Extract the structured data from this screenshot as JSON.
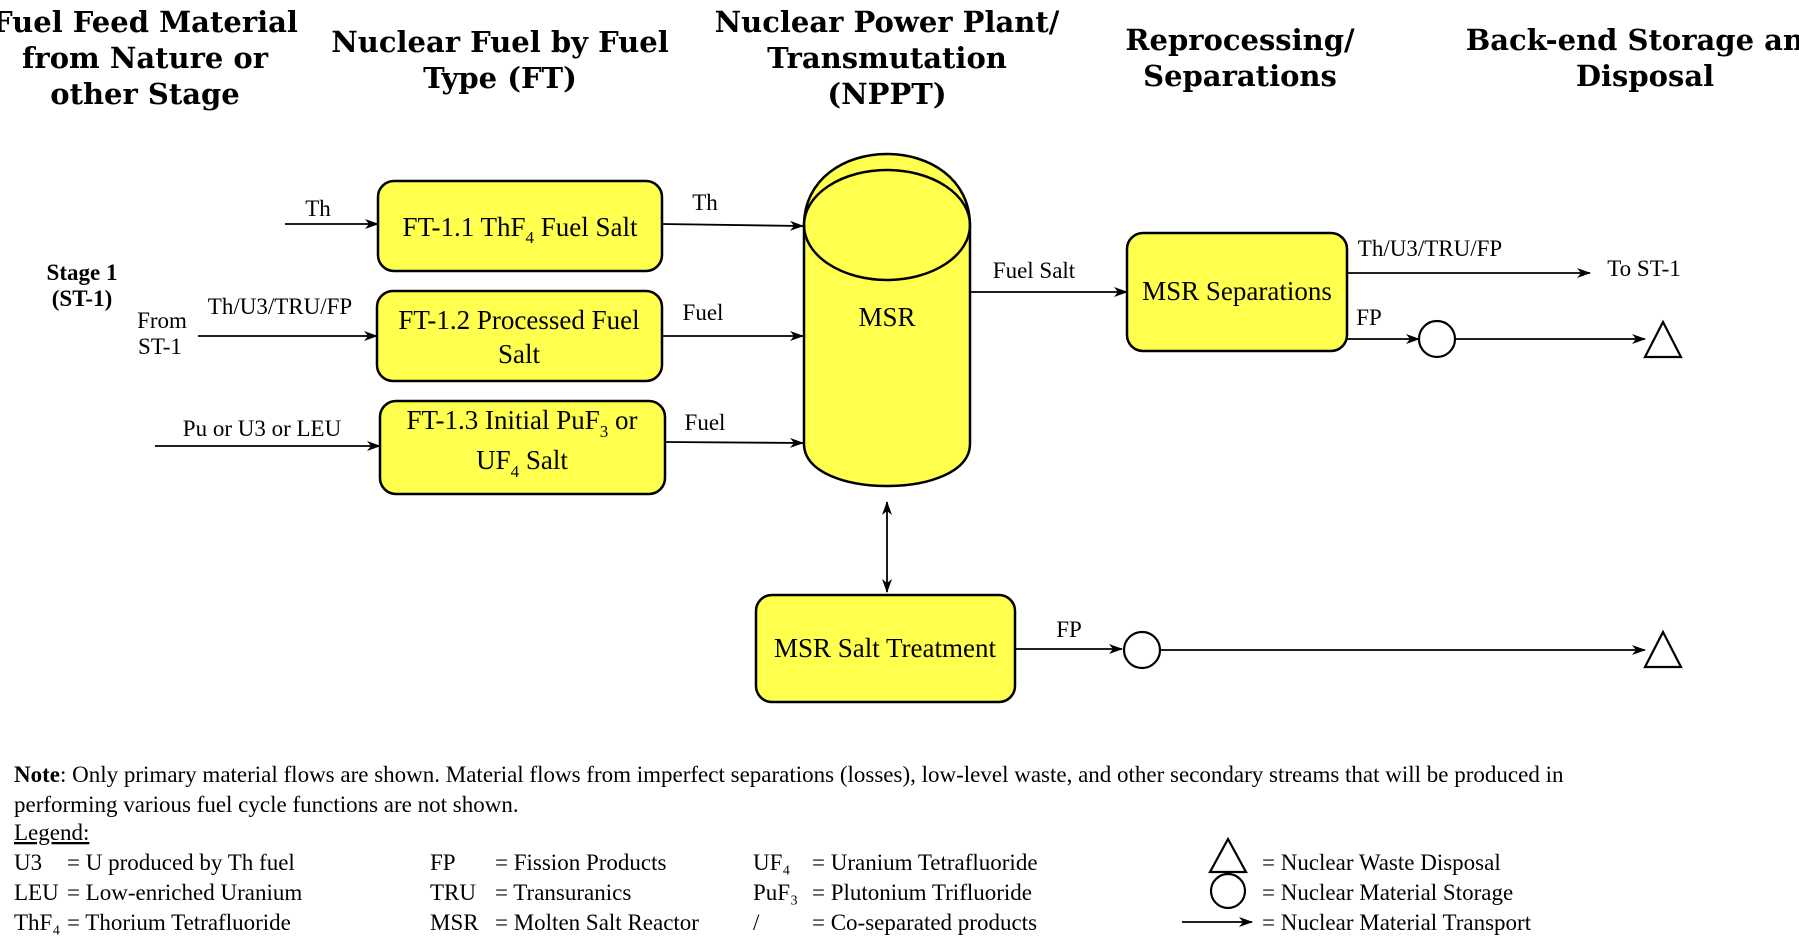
{
  "headers": {
    "feed": [
      "Fuel Feed Material",
      "from Nature or",
      "other Stage"
    ],
    "fuel": [
      "Nuclear Fuel by Fuel",
      "Type (FT)"
    ],
    "plant": [
      "Nuclear Power Plant/",
      "Transmutation",
      "(NPPT)"
    ],
    "reprocessing": [
      "Reprocessing/",
      "Separations"
    ],
    "backend": [
      "Back-end Storage and",
      "Disposal"
    ]
  },
  "stage": {
    "line1": "Stage 1",
    "line2": "(ST-1)"
  },
  "from_st1": {
    "line1": "From",
    "line2": "ST-1"
  },
  "boxes": {
    "ft11": {
      "prefix": "FT-1.1 ThF",
      "sub": "4",
      "suffix": " Fuel Salt"
    },
    "ft12": {
      "line1": "FT-1.2 Processed Fuel",
      "line2": "Salt"
    },
    "ft13": {
      "line1_prefix": "FT-1.3 Initial PuF",
      "line1_sub": "3",
      "line1_suffix": " or",
      "line2_prefix": "UF",
      "line2_sub": "4",
      "line2_suffix": " Salt"
    },
    "reactor": "MSR",
    "separations": "MSR Separations",
    "treatment": "MSR Salt Treatment"
  },
  "flows": {
    "in_th": "Th",
    "in_th_u3": "Th/U3/TRU/FP",
    "in_pu": "Pu or U3 or LEU",
    "out_th": "Th",
    "out_fuel_1": "Fuel",
    "out_fuel_2": "Fuel",
    "fuel_salt": "Fuel Salt",
    "sep_out_recycle": "Th/U3/TRU/FP",
    "to_st1": "To ST-1",
    "sep_out_fp": "FP",
    "treat_out_fp": "FP"
  },
  "note": {
    "label": "Note",
    "line1": ":  Only primary material flows are shown. Material flows from imperfect separations (losses), low-level waste, and other secondary streams that will be produced in",
    "line2": "performing various fuel cycle functions are not shown."
  },
  "legend": {
    "title": "Legend:",
    "col1": [
      {
        "abbr": "U3",
        "def": "= U produced by Th fuel"
      },
      {
        "abbr": "LEU",
        "def": "= Low-enriched Uranium"
      },
      {
        "abbr": "ThF₄",
        "def": "= Thorium Tetrafluoride"
      }
    ],
    "col2": [
      {
        "abbr": "FP",
        "def": "= Fission Products"
      },
      {
        "abbr": "TRU",
        "def": "= Transuranics"
      },
      {
        "abbr": "MSR",
        "def": "= Molten Salt Reactor"
      }
    ],
    "col3": [
      {
        "abbr": "UF₄",
        "def": "= Uranium Tetrafluoride"
      },
      {
        "abbr": "PuF₃",
        "def": "= Plutonium Trifluoride"
      },
      {
        "abbr": "/",
        "def": "= Co-separated products"
      }
    ],
    "symbols": [
      {
        "icon": "triangle-icon",
        "def": "= Nuclear Waste Disposal"
      },
      {
        "icon": "circle-icon",
        "def": "= Nuclear Material Storage"
      },
      {
        "icon": "arrow-icon",
        "def": "= Nuclear Material Transport"
      }
    ]
  },
  "colors": {
    "box_fill": "#ffff4d",
    "line": "#000000"
  }
}
